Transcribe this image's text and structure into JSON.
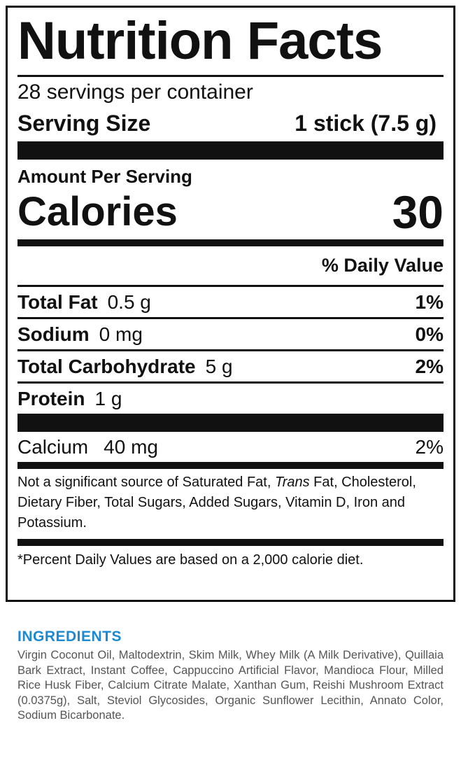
{
  "label": {
    "title": "Nutrition Facts",
    "servings_per_container": "28 servings per container",
    "serving_size_label": "Serving Size",
    "serving_size_value": "1 stick (7.5 g)",
    "amount_per_serving": "Amount Per Serving",
    "calories_label": "Calories",
    "calories_value": "30",
    "daily_value_header": "% Daily Value",
    "nutrients": [
      {
        "name": "Total Fat",
        "amount": "0.5 g",
        "dv": "1%"
      },
      {
        "name": "Sodium",
        "amount": "0 mg",
        "dv": "0%"
      },
      {
        "name": "Total Carbohydrate",
        "amount": "5 g",
        "dv": "2%"
      },
      {
        "name": "Protein",
        "amount": "1 g",
        "dv": ""
      }
    ],
    "vitamins": [
      {
        "name": "Calcium",
        "amount": "40 mg",
        "dv": "2%"
      }
    ],
    "not_significant_pre": "Not a significant source of Saturated Fat, ",
    "not_significant_italic": "Trans",
    "not_significant_post": " Fat, Cholesterol, Dietary Fiber, Total Sugars, Added  Sugars, Vitamin D, Iron and Potassium.",
    "footnote": "*Percent Daily Values are based on a 2,000 calorie diet."
  },
  "ingredients": {
    "heading": "INGREDIENTS",
    "text": "Virgin Coconut Oil, Maltodextrin, Skim Milk, Whey Milk (A Milk Derivative), Quillaia Bark Extract, Instant Coffee, Cappuccino Artificial Flavor, Mandioca Flour, Milled Rice Husk Fiber, Calcium Citrate Malate, Xanthan Gum, Reishi Mushroom Extract (0.0375g), Salt, Steviol Glycosides, Organic Sunflower Lecithin, Annato Color, Sodium Bicarbonate."
  },
  "colors": {
    "ink": "#111111",
    "heading_blue": "#1a8ad4",
    "ingredients_text": "#555555"
  }
}
